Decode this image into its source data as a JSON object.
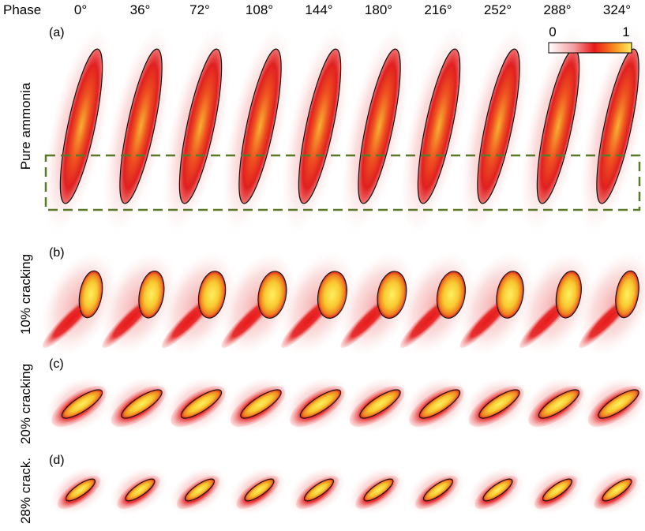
{
  "header": {
    "label": "Phase",
    "phases": [
      "0°",
      "36°",
      "72°",
      "108°",
      "144°",
      "180°",
      "216°",
      "252°",
      "288°",
      "324°"
    ]
  },
  "colorbar": {
    "min": "0",
    "max": "1"
  },
  "rows": [
    {
      "tag": "(a)",
      "label": "Pure ammonia"
    },
    {
      "tag": "(b)",
      "label": "10% cracking"
    },
    {
      "tag": "(c)",
      "label": "20% cracking"
    },
    {
      "tag": "(d)",
      "label": "28% crack."
    }
  ]
}
